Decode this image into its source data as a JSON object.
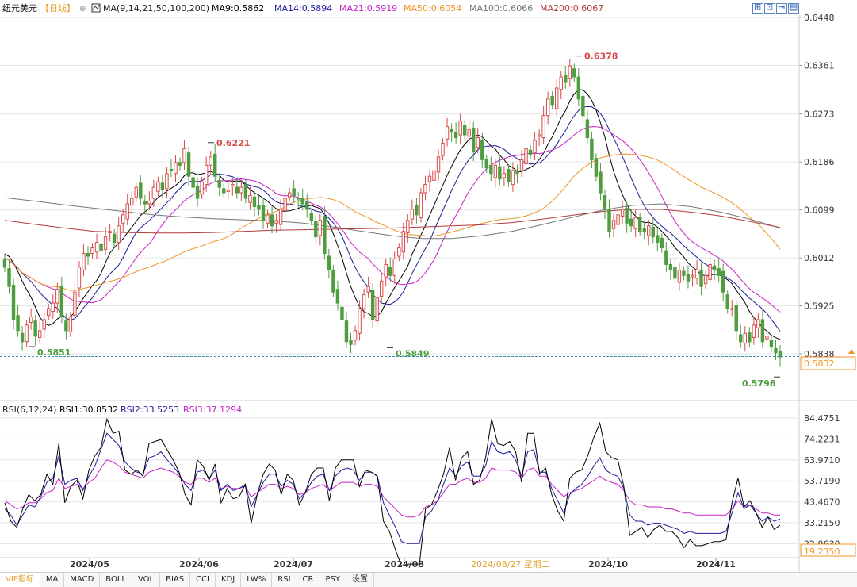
{
  "header": {
    "pair": "纽元美元",
    "period": "【日线】",
    "ma_label": "MA(9,14,21,50,100,200)",
    "ma_values": [
      {
        "text": "MA9:0.5862",
        "color": "#000000"
      },
      {
        "text": "MA14:0.5894",
        "color": "#1c1c9c"
      },
      {
        "text": "MA21:0.5919",
        "color": "#c622c6"
      },
      {
        "text": "MA50:0.6054",
        "color": "#f29322"
      },
      {
        "text": "MA100:0.6066",
        "color": "#777777"
      },
      {
        "text": "MA200:0.6067",
        "color": "#b23a3a"
      }
    ]
  },
  "rsi_header": {
    "label": "RSI(6,12,24)",
    "values": [
      {
        "text": "RSI1:30.8532",
        "color": "#000000"
      },
      {
        "text": "RSI2:33.5253",
        "color": "#1c1c9c"
      },
      {
        "text": "RSI3:37.1294",
        "color": "#c622c6"
      }
    ]
  },
  "toolbar_icons": [
    "fit-icon",
    "zoom-icon",
    "step-icon",
    "last-icon"
  ],
  "tabs": [
    "VIP指标",
    "MA",
    "MACD",
    "BOLL",
    "VOL",
    "BIAS",
    "CCI",
    "KDJ",
    "LW%",
    "RSI",
    "CR",
    "PSY",
    "设置"
  ],
  "active_tab": 0,
  "colors": {
    "up": "#d84a4a",
    "down": "#4e9d3f",
    "grid": "#e6e6e6",
    "highlight_date": "#e4a232"
  },
  "chart_data": {
    "type": "candlestick",
    "price_axis": {
      "min": 0.5792,
      "max": 0.6448,
      "ticks": [
        "0.6448",
        "0.6361",
        "0.6273",
        "0.6186",
        "0.6099",
        "0.6012",
        "0.5925",
        "0.5838"
      ]
    },
    "last_price": "0.5832",
    "annotations": [
      "0.5851",
      "0.6221",
      "0.5849",
      "0.6378",
      "0.5796"
    ],
    "date_axis": [
      "2024/05",
      "2024/06",
      "2024/07",
      "2024/08",
      "2024/10",
      "2024/11"
    ],
    "crosshair_date": "2024/08/27 星期二",
    "close": [
      0.5995,
      0.596,
      0.59,
      0.588,
      0.586,
      0.589,
      0.5905,
      0.587,
      0.588,
      0.59,
      0.592,
      0.593,
      0.5955,
      0.5905,
      0.588,
      0.5905,
      0.595,
      0.5995,
      0.602,
      0.6015,
      0.603,
      0.604,
      0.6025,
      0.605,
      0.606,
      0.604,
      0.607,
      0.609,
      0.611,
      0.612,
      0.614,
      0.612,
      0.611,
      0.6115,
      0.614,
      0.615,
      0.6135,
      0.6165,
      0.617,
      0.6185,
      0.618,
      0.621,
      0.616,
      0.614,
      0.612,
      0.615,
      0.618,
      0.6195,
      0.616,
      0.614,
      0.613,
      0.6135,
      0.6145,
      0.613,
      0.614,
      0.612,
      0.6125,
      0.6105,
      0.61,
      0.608,
      0.609,
      0.607,
      0.608,
      0.61,
      0.612,
      0.613,
      0.6125,
      0.612,
      0.611,
      0.61,
      0.608,
      0.605,
      0.608,
      0.602,
      0.599,
      0.595,
      0.593,
      0.59,
      0.586,
      0.5855,
      0.588,
      0.592,
      0.5945,
      0.596,
      0.59,
      0.594,
      0.597,
      0.6,
      0.598,
      0.601,
      0.603,
      0.606,
      0.608,
      0.61,
      0.609,
      0.613,
      0.6145,
      0.616,
      0.617,
      0.6195,
      0.622,
      0.625,
      0.624,
      0.623,
      0.626,
      0.6235,
      0.6245,
      0.6205,
      0.623,
      0.619,
      0.6175,
      0.6165,
      0.618,
      0.6155,
      0.6165,
      0.615,
      0.617,
      0.6165,
      0.619,
      0.621,
      0.62,
      0.6225,
      0.6235,
      0.627,
      0.63,
      0.629,
      0.632,
      0.634,
      0.633,
      0.636,
      0.634,
      0.63,
      0.627,
      0.623,
      0.619,
      0.616,
      0.613,
      0.61,
      0.606,
      0.608,
      0.609,
      0.61,
      0.6075,
      0.607,
      0.6085,
      0.606,
      0.606,
      0.607,
      0.605,
      0.604,
      0.603,
      0.6,
      0.599,
      0.5975,
      0.599,
      0.598,
      0.597,
      0.598,
      0.599,
      0.596,
      0.598,
      0.6,
      0.599,
      0.598,
      0.595,
      0.592,
      0.592,
      0.588,
      0.586,
      0.5875,
      0.586,
      0.589,
      0.59,
      0.586,
      0.587,
      0.585,
      0.584,
      0.5832
    ],
    "rsi1": [
      43,
      34,
      31,
      40,
      47,
      44,
      47,
      57,
      52,
      72,
      43,
      51,
      54,
      45,
      59,
      66,
      70,
      84,
      77,
      78,
      59,
      57,
      59,
      56,
      72,
      73,
      74,
      69,
      64,
      58,
      47,
      42,
      64,
      61,
      54,
      62,
      43,
      50,
      45,
      46,
      52,
      33,
      47,
      57,
      62,
      59,
      47,
      57,
      54,
      42,
      48,
      57,
      60,
      60,
      44,
      60,
      64,
      64,
      64,
      51,
      59,
      58,
      56,
      34,
      29,
      20,
      12,
      13,
      13,
      13,
      40,
      42,
      49,
      57,
      70,
      54,
      65,
      68,
      52,
      54,
      65,
      84,
      72,
      71,
      73,
      68,
      53,
      77,
      77,
      57,
      60,
      47,
      39,
      34,
      55,
      58,
      59,
      66,
      75,
      82,
      68,
      65,
      64,
      51,
      27,
      29,
      31,
      26,
      30,
      32,
      29,
      29,
      26,
      21,
      25,
      22,
      22,
      23,
      24,
      24,
      25,
      43,
      55,
      41,
      44,
      38,
      31,
      36,
      30,
      32
    ],
    "rsi2": [
      40,
      37,
      32,
      37,
      42,
      41,
      46,
      53,
      55,
      66,
      52,
      54,
      55,
      49,
      56,
      61,
      69,
      77,
      74,
      71,
      63,
      60,
      58,
      57,
      65,
      66,
      68,
      64,
      61,
      57,
      52,
      49,
      58,
      59,
      55,
      59,
      49,
      52,
      49,
      50,
      52,
      41,
      47,
      53,
      57,
      57,
      51,
      54,
      52,
      45,
      48,
      53,
      56,
      57,
      49,
      56,
      59,
      60,
      59,
      54,
      58,
      58,
      56,
      43,
      37,
      31,
      24,
      23,
      23,
      23,
      36,
      39,
      44,
      52,
      60,
      56,
      61,
      63,
      56,
      56,
      61,
      73,
      68,
      67,
      68,
      64,
      56,
      68,
      69,
      58,
      58,
      50,
      44,
      38,
      47,
      50,
      52,
      56,
      61,
      65,
      59,
      57,
      56,
      50,
      37,
      34,
      34,
      32,
      33,
      33,
      32,
      31,
      30,
      28,
      29,
      28,
      28,
      28,
      28,
      28,
      29,
      38,
      48,
      40,
      42,
      38,
      34,
      36,
      34,
      35
    ],
    "rsi3": [
      44,
      42,
      40,
      41,
      43,
      43,
      45,
      48,
      49,
      55,
      50,
      51,
      52,
      50,
      53,
      55,
      60,
      64,
      63,
      61,
      58,
      57,
      56,
      55,
      58,
      59,
      60,
      59,
      58,
      56,
      53,
      52,
      55,
      55,
      53,
      55,
      50,
      51,
      50,
      50,
      51,
      46,
      48,
      50,
      52,
      52,
      50,
      51,
      50,
      47,
      48,
      50,
      51,
      52,
      49,
      51,
      53,
      53,
      53,
      51,
      52,
      52,
      51,
      46,
      43,
      40,
      37,
      36,
      36,
      37,
      41,
      42,
      44,
      48,
      52,
      52,
      54,
      55,
      53,
      53,
      55,
      60,
      59,
      59,
      59,
      58,
      55,
      59,
      60,
      56,
      56,
      52,
      49,
      46,
      48,
      49,
      50,
      52,
      54,
      56,
      54,
      53,
      52,
      49,
      44,
      42,
      42,
      41,
      41,
      41,
      40,
      40,
      39,
      38,
      38,
      37,
      37,
      37,
      37,
      37,
      37,
      40,
      44,
      41,
      42,
      40,
      38,
      38,
      37,
      37
    ]
  }
}
